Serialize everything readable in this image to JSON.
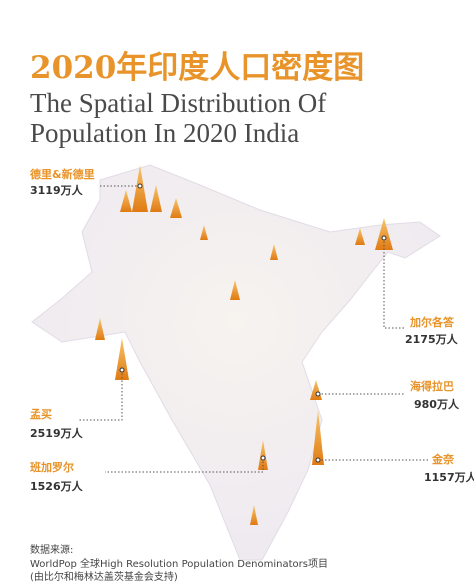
{
  "header": {
    "title": "2020年印度人口密度图",
    "subtitle_lines": [
      "The Spatial Distribution Of",
      "Population In 2020 India"
    ]
  },
  "cities": [
    {
      "name": "德里&新德里",
      "population": "3119万人"
    },
    {
      "name": "加尔各答",
      "population": "2175万人"
    },
    {
      "name": "海得拉巴",
      "population": "980万人"
    },
    {
      "name": "孟买",
      "population": "2519万人"
    },
    {
      "name": "班加罗尔",
      "population": "1526万人"
    },
    {
      "name": "金奈",
      "population": "1157万人"
    }
  ],
  "source": [
    "数据来源:",
    "WorldPop 全球High Resolution Population Denominators项目",
    "(由比尔和梅林达盖茨基金会支持)"
  ]
}
